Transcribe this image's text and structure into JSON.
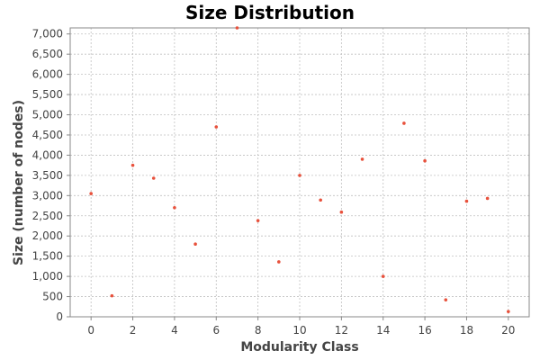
{
  "colors": {
    "background": "#ffffff",
    "plot_background": "#ffffff",
    "gridline": "#c0c0c0",
    "axis": "#888888",
    "point": "#e8513c",
    "text": "#444444",
    "title": "#000000"
  },
  "chart_data": {
    "type": "scatter",
    "title": "Size Distribution",
    "xlabel": "Modularity Class",
    "ylabel": "Size (number of nodes)",
    "xlim": [
      -1,
      21
    ],
    "ylim": [
      0,
      7150
    ],
    "grid": true,
    "legend": "none",
    "x_ticks": [
      0,
      2,
      4,
      6,
      8,
      10,
      12,
      14,
      16,
      18,
      20
    ],
    "x_tick_labels": [
      "0",
      "2",
      "4",
      "6",
      "8",
      "10",
      "12",
      "14",
      "16",
      "18",
      "20"
    ],
    "y_ticks": [
      0,
      500,
      1000,
      1500,
      2000,
      2500,
      3000,
      3500,
      4000,
      4500,
      5000,
      5500,
      6000,
      6500,
      7000
    ],
    "y_tick_labels": [
      "0",
      "500",
      "1,000",
      "1,500",
      "2,000",
      "2,500",
      "3,000",
      "3,500",
      "4,000",
      "4,500",
      "5,000",
      "5,500",
      "6,000",
      "6,500",
      "7,000"
    ],
    "x": [
      0,
      1,
      2,
      3,
      4,
      5,
      6,
      7,
      8,
      9,
      10,
      11,
      12,
      13,
      14,
      15,
      16,
      17,
      18,
      19,
      20
    ],
    "y": [
      3050,
      520,
      3750,
      3430,
      2700,
      1800,
      4700,
      7150,
      2380,
      1360,
      3500,
      2890,
      2590,
      3900,
      1000,
      4790,
      3860,
      420,
      2860,
      2930,
      130
    ]
  }
}
